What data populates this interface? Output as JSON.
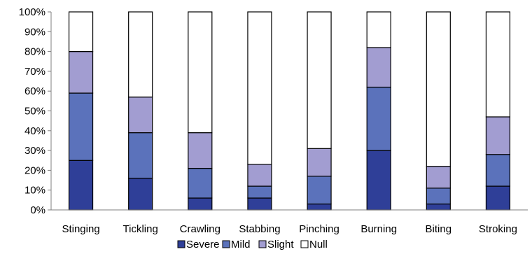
{
  "chart_data": {
    "type": "bar",
    "stacked": true,
    "title": "",
    "xlabel": "",
    "ylabel": "",
    "categories": [
      "Stinging",
      "Tickling",
      "Crawling",
      "Stabbing",
      "Pinching",
      "Burning",
      "Biting",
      "Stroking"
    ],
    "series": [
      {
        "name": "Severe",
        "color": "#2f3f98",
        "values": [
          25,
          16,
          6,
          6,
          3,
          30,
          3,
          12
        ]
      },
      {
        "name": "Mild",
        "color": "#5b72bb",
        "values": [
          34,
          23,
          15,
          6,
          14,
          32,
          8,
          16
        ]
      },
      {
        "name": "Slight",
        "color": "#a29dd1",
        "values": [
          21,
          18,
          18,
          11,
          14,
          20,
          11,
          19
        ]
      },
      {
        "name": "Null",
        "color": "#ffffff",
        "values": [
          20,
          43,
          61,
          77,
          69,
          18,
          78,
          53
        ]
      }
    ],
    "ylim": [
      0,
      100
    ],
    "yticks": [
      "0%",
      "10%",
      "20%",
      "30%",
      "40%",
      "50%",
      "60%",
      "70%",
      "80%",
      "90%",
      "100%"
    ],
    "legend_position": "bottom",
    "grid": false
  }
}
